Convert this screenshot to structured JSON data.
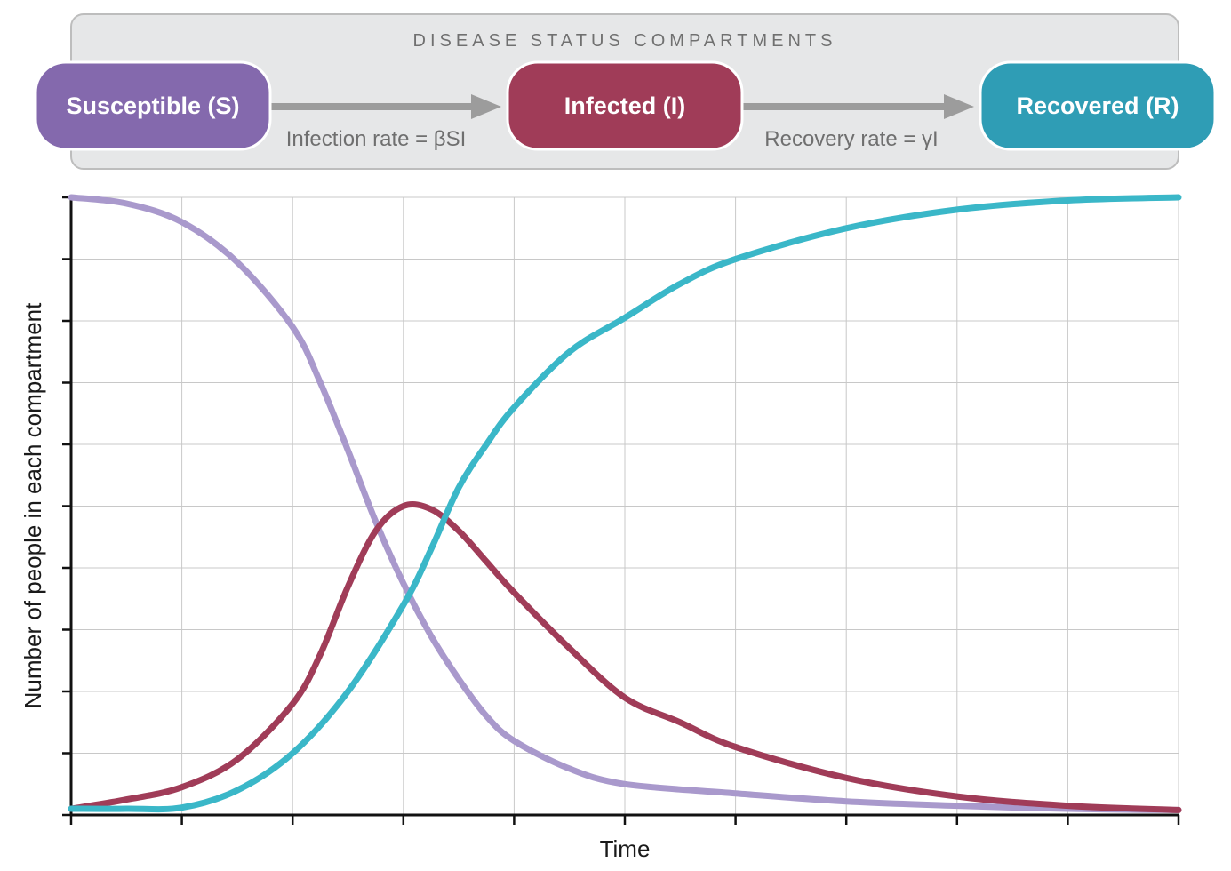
{
  "diagram": {
    "title": "DISEASE STATUS COMPARTMENTS",
    "compartments": [
      {
        "label": "Susceptible (S)",
        "color": "#8469ad"
      },
      {
        "label": "Infected (I)",
        "color": "#a03c58"
      },
      {
        "label": "Recovered (R)",
        "color": "#2f9db5"
      }
    ],
    "transitions": [
      {
        "label": "Infection rate = βSI"
      },
      {
        "label": "Recovery rate = γI"
      }
    ],
    "arrow_color": "#9c9c9c",
    "panel_color": "#e6e7e8"
  },
  "chart_data": {
    "type": "line",
    "title": "",
    "xlabel": "Time",
    "ylabel": "Number of people in each compartment",
    "xlim": [
      0,
      10
    ],
    "ylim": [
      0,
      10
    ],
    "grid": true,
    "x_tick_count": 11,
    "y_tick_count": 11,
    "tick_labels_shown": false,
    "series": [
      {
        "key": "S",
        "color": "#a999cc",
        "x": [
          0,
          0.5,
          1,
          1.5,
          2,
          2.25,
          2.5,
          2.75,
          3,
          3.25,
          3.5,
          3.75,
          4,
          4.5,
          5,
          6,
          7,
          8,
          9,
          10
        ],
        "y": [
          10,
          9.9,
          9.6,
          8.95,
          7.9,
          7.0,
          5.9,
          4.75,
          3.75,
          2.9,
          2.2,
          1.6,
          1.2,
          0.75,
          0.5,
          0.35,
          0.22,
          0.15,
          0.1,
          0.08
        ]
      },
      {
        "key": "I",
        "color": "#a03c58",
        "x": [
          0,
          0.5,
          1,
          1.5,
          2,
          2.25,
          2.5,
          2.75,
          3,
          3.25,
          3.5,
          3.75,
          4,
          4.5,
          5,
          5.5,
          6,
          7,
          8,
          9,
          10
        ],
        "y": [
          0.1,
          0.25,
          0.45,
          0.9,
          1.8,
          2.6,
          3.7,
          4.6,
          5.0,
          4.95,
          4.6,
          4.1,
          3.6,
          2.7,
          1.9,
          1.5,
          1.1,
          0.6,
          0.3,
          0.15,
          0.08
        ]
      },
      {
        "key": "R",
        "color": "#3ab7c8",
        "x": [
          0,
          0.5,
          1,
          1.5,
          2,
          2.5,
          3,
          3.25,
          3.5,
          3.75,
          4,
          4.5,
          5,
          5.5,
          6,
          7,
          8,
          9,
          10
        ],
        "y": [
          0.1,
          0.1,
          0.12,
          0.4,
          1.0,
          2.0,
          3.4,
          4.3,
          5.3,
          6.0,
          6.6,
          7.5,
          8.05,
          8.6,
          9.0,
          9.5,
          9.8,
          9.95,
          10
        ]
      }
    ]
  }
}
